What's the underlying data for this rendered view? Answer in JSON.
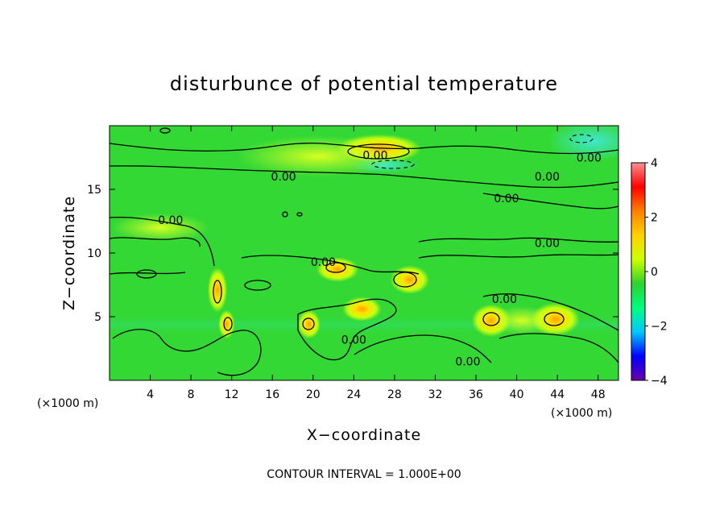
{
  "chart_data": {
    "type": "heatmap",
    "title": "disturbunce of potential temperature",
    "xlabel": "X−coordinate",
    "ylabel": "Z−coordinate",
    "x_unit": "(×1000 m)",
    "z_unit": "(×1000 m)",
    "xlim": [
      0,
      50
    ],
    "ylim": [
      0,
      20
    ],
    "x_ticks": [
      4,
      8,
      12,
      16,
      20,
      24,
      28,
      32,
      36,
      40,
      44,
      48
    ],
    "x_tick_labels": [
      "4",
      "8",
      "12",
      "16",
      "20",
      "24",
      "28",
      "32",
      "36",
      "40",
      "44",
      "48"
    ],
    "y_ticks": [
      5,
      10,
      15
    ],
    "y_tick_labels": [
      "5",
      "10",
      "15"
    ],
    "colorbar": {
      "range": [
        -4,
        4
      ],
      "ticks": [
        4,
        2,
        0,
        -2,
        -4
      ],
      "tick_labels": [
        "4",
        "2",
        "0",
        "−2",
        "−4"
      ],
      "colors": [
        "#6a00a8",
        "#0000ff",
        "#00c8ff",
        "#00ff80",
        "#2ed12e",
        "#ccff00",
        "#ffd200",
        "#ff8000",
        "#ff0000",
        "#ff8f8f"
      ]
    },
    "background_value": 0.3,
    "contour_interval": 1.0,
    "contour_labels": [
      {
        "text": "0.00",
        "x": 26.1,
        "z": 17.7
      },
      {
        "text": "0.00",
        "x": 47.1,
        "z": 17.5
      },
      {
        "text": "0.00",
        "x": 17.1,
        "z": 16.0
      },
      {
        "text": "0.00",
        "x": 43.0,
        "z": 16.0
      },
      {
        "text": "0.00",
        "x": 39.0,
        "z": 14.3
      },
      {
        "text": "0.00",
        "x": 6.0,
        "z": 12.6
      },
      {
        "text": "0.00",
        "x": 43.0,
        "z": 10.8
      },
      {
        "text": "0.00",
        "x": 21.0,
        "z": 9.3
      },
      {
        "text": "0.00",
        "x": 38.8,
        "z": 6.4
      },
      {
        "text": "0.00",
        "x": 24.0,
        "z": 3.2
      },
      {
        "text": "0.00",
        "x": 35.2,
        "z": 1.5
      }
    ],
    "features": [
      {
        "kind": "warm",
        "x": 26.5,
        "z": 18.2,
        "rx": 2.6,
        "rz": 0.7,
        "value": 1.4
      },
      {
        "kind": "cool",
        "x": 27.0,
        "z": 16.9,
        "rx": 2.2,
        "rz": 0.4,
        "value": -0.6
      },
      {
        "kind": "cool",
        "x": 47.5,
        "z": 18.8,
        "rx": 2.8,
        "rz": 1.0,
        "value": -0.8
      },
      {
        "kind": "warm",
        "x": 20.5,
        "z": 17.6,
        "rx": 5.0,
        "rz": 1.0,
        "value": 0.8
      },
      {
        "kind": "warm",
        "x": 10.6,
        "z": 7.1,
        "rx": 0.6,
        "rz": 1.1,
        "value": 1.8
      },
      {
        "kind": "warm",
        "x": 11.5,
        "z": 4.4,
        "rx": 0.5,
        "rz": 0.7,
        "value": 1.4
      },
      {
        "kind": "warm",
        "x": 19.6,
        "z": 4.4,
        "rx": 0.7,
        "rz": 0.7,
        "value": 2.0
      },
      {
        "kind": "warm",
        "x": 22.4,
        "z": 8.7,
        "rx": 1.3,
        "rz": 0.6,
        "value": 1.6
      },
      {
        "kind": "warm",
        "x": 29.5,
        "z": 7.9,
        "rx": 1.2,
        "rz": 0.7,
        "value": 2.0
      },
      {
        "kind": "warm",
        "x": 24.8,
        "z": 5.6,
        "rx": 1.2,
        "rz": 0.6,
        "value": 1.2
      },
      {
        "kind": "warm",
        "x": 37.5,
        "z": 4.7,
        "rx": 1.2,
        "rz": 0.8,
        "value": 1.6
      },
      {
        "kind": "warm",
        "x": 43.8,
        "z": 4.8,
        "rx": 1.5,
        "rz": 0.8,
        "value": 1.6
      },
      {
        "kind": "warm",
        "x": 40.5,
        "z": 4.7,
        "rx": 2.0,
        "rz": 0.7,
        "value": 0.9
      },
      {
        "kind": "warm",
        "x": 5.0,
        "z": 12.0,
        "rx": 3.0,
        "rz": 0.7,
        "value": 0.7
      }
    ],
    "note": "CONTOUR INTERVAL = 1.000E+00",
    "grid": false
  }
}
